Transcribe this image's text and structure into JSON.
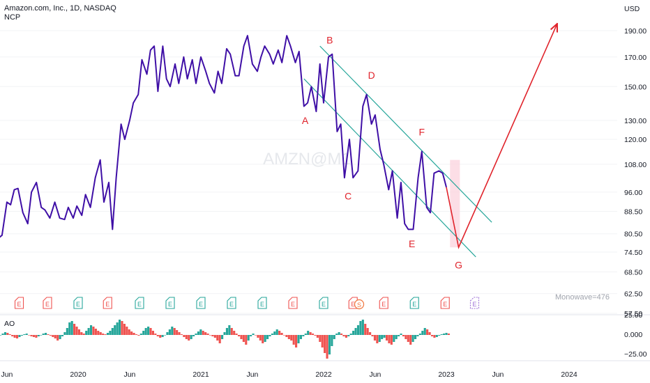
{
  "header": {
    "title": "Amazon.com, Inc., 1D, NASDAQ",
    "subtitle": "NCP"
  },
  "colors": {
    "price": "#3f0fa6",
    "channel": "#26a69a",
    "projection": "#e0232b",
    "zone": "#fbd3dd",
    "ao_up": "#26a69a",
    "ao_down": "#ef5350",
    "earnings": "#ef5350",
    "earnings_pos": "#26a69a"
  },
  "watermark": "AMZN@M1",
  "monowave_label": "Monowave=476",
  "chart_data": {
    "type": "line",
    "currency": "USD",
    "y_scale": "log",
    "price_ticks": [
      "190.00",
      "170.00",
      "150.00",
      "130.00",
      "120.00",
      "108.00",
      "96.00",
      "88.50",
      "80.50",
      "74.50",
      "68.50",
      "62.50",
      "57.50"
    ],
    "x_ticks": [
      "Jun",
      "2020",
      "Jun",
      "2021",
      "Jun",
      "2022",
      "Jun",
      "2023",
      "Jun",
      "2024"
    ],
    "series": [
      {
        "values": [
          [
            2019.35,
            79.0
          ],
          [
            2019.38,
            80.0
          ],
          [
            2019.42,
            92.0
          ],
          [
            2019.45,
            91.0
          ],
          [
            2019.48,
            97.0
          ],
          [
            2019.51,
            97.5
          ],
          [
            2019.55,
            88.0
          ],
          [
            2019.59,
            84.0
          ],
          [
            2019.62,
            96.0
          ],
          [
            2019.66,
            100.0
          ],
          [
            2019.7,
            90.0
          ],
          [
            2019.73,
            89.0
          ],
          [
            2019.77,
            86.0
          ],
          [
            2019.81,
            92.0
          ],
          [
            2019.85,
            86.0
          ],
          [
            2019.89,
            85.5
          ],
          [
            2019.92,
            90.0
          ],
          [
            2019.96,
            86.0
          ],
          [
            2019.99,
            90.5
          ],
          [
            2020.03,
            87.0
          ],
          [
            2020.06,
            95.0
          ],
          [
            2020.1,
            90.0
          ],
          [
            2020.14,
            102.0
          ],
          [
            2020.18,
            110.0
          ],
          [
            2020.21,
            92.0
          ],
          [
            2020.25,
            100.0
          ],
          [
            2020.28,
            82.0
          ],
          [
            2020.31,
            102.0
          ],
          [
            2020.35,
            128.0
          ],
          [
            2020.38,
            120.0
          ],
          [
            2020.42,
            130.0
          ],
          [
            2020.45,
            140.0
          ],
          [
            2020.49,
            145.0
          ],
          [
            2020.52,
            168.0
          ],
          [
            2020.56,
            158.0
          ],
          [
            2020.59,
            175.0
          ],
          [
            2020.62,
            178.0
          ],
          [
            2020.65,
            147.0
          ],
          [
            2020.69,
            178.0
          ],
          [
            2020.72,
            155.0
          ],
          [
            2020.75,
            150.0
          ],
          [
            2020.79,
            165.0
          ],
          [
            2020.82,
            152.0
          ],
          [
            2020.86,
            170.0
          ],
          [
            2020.89,
            155.0
          ],
          [
            2020.93,
            168.0
          ],
          [
            2020.96,
            152.0
          ],
          [
            2021.0,
            170.0
          ],
          [
            2021.04,
            160.0
          ],
          [
            2021.07,
            152.0
          ],
          [
            2021.11,
            146.0
          ],
          [
            2021.14,
            160.0
          ],
          [
            2021.17,
            152.0
          ],
          [
            2021.21,
            176.0
          ],
          [
            2021.24,
            172.0
          ],
          [
            2021.28,
            157.0
          ],
          [
            2021.31,
            157.0
          ],
          [
            2021.35,
            178.0
          ],
          [
            2021.38,
            186.0
          ],
          [
            2021.42,
            165.0
          ],
          [
            2021.46,
            160.0
          ],
          [
            2021.49,
            170.0
          ],
          [
            2021.52,
            178.0
          ],
          [
            2021.56,
            172.0
          ],
          [
            2021.59,
            165.0
          ],
          [
            2021.63,
            175.0
          ],
          [
            2021.66,
            166.0
          ],
          [
            2021.7,
            186.0
          ],
          [
            2021.73,
            178.0
          ],
          [
            2021.77,
            166.0
          ],
          [
            2021.8,
            174.0
          ],
          [
            2021.84,
            138.0
          ],
          [
            2021.87,
            140.0
          ],
          [
            2021.9,
            150.0
          ],
          [
            2021.94,
            135.0
          ],
          [
            2021.97,
            165.0
          ],
          [
            2022.0,
            140.0
          ],
          [
            2022.04,
            170.0
          ],
          [
            2022.07,
            172.0
          ],
          [
            2022.11,
            124.0
          ],
          [
            2022.14,
            128.0
          ],
          [
            2022.17,
            102.0
          ],
          [
            2022.21,
            120.0
          ],
          [
            2022.24,
            102.0
          ],
          [
            2022.28,
            105.0
          ],
          [
            2022.32,
            138.0
          ],
          [
            2022.35,
            145.0
          ],
          [
            2022.39,
            128.0
          ],
          [
            2022.42,
            133.0
          ],
          [
            2022.46,
            115.0
          ],
          [
            2022.49,
            108.0
          ],
          [
            2022.53,
            97.0
          ],
          [
            2022.56,
            105.0
          ],
          [
            2022.6,
            86.0
          ],
          [
            2022.63,
            100.0
          ],
          [
            2022.66,
            84.0
          ],
          [
            2022.69,
            82.0
          ],
          [
            2022.73,
            82.0
          ],
          [
            2022.77,
            102.0
          ],
          [
            2022.8,
            114.0
          ],
          [
            2022.84,
            90.0
          ],
          [
            2022.87,
            88.0
          ],
          [
            2022.9,
            104.0
          ],
          [
            2022.94,
            105.0
          ],
          [
            2022.97,
            104.0
          ],
          [
            2023.0,
            98.0
          ]
        ]
      }
    ],
    "channel_lines": [
      {
        "name": "upper",
        "from": [
          2021.97,
          178.0
        ],
        "to": [
          2023.37,
          84.5
        ]
      },
      {
        "name": "lower",
        "from": [
          2021.84,
          155.0
        ],
        "to": [
          2023.24,
          73.0
        ]
      }
    ],
    "projection": [
      [
        2023.0,
        98.0
      ],
      [
        2023.1,
        76.0
      ],
      [
        2023.9,
        195.0
      ]
    ],
    "zone": {
      "x0": 2023.03,
      "x1": 2023.11,
      "y0": 76.0,
      "y1": 110.0
    },
    "wave_labels": [
      {
        "label": "A",
        "x": 2021.85,
        "y": 128.0
      },
      {
        "label": "B",
        "x": 2022.05,
        "y": 180.0
      },
      {
        "label": "C",
        "x": 2022.2,
        "y": 93.0
      },
      {
        "label": "D",
        "x": 2022.39,
        "y": 155.0
      },
      {
        "label": "E",
        "x": 2022.72,
        "y": 76.0
      },
      {
        "label": "F",
        "x": 2022.8,
        "y": 122.0
      },
      {
        "label": "G",
        "x": 2023.1,
        "y": 69.5
      }
    ],
    "earnings": [
      {
        "x": 2019.52,
        "sign": "down"
      },
      {
        "x": 2019.75,
        "sign": "down"
      },
      {
        "x": 2020.0,
        "sign": "up"
      },
      {
        "x": 2020.24,
        "sign": "down"
      },
      {
        "x": 2020.5,
        "sign": "up"
      },
      {
        "x": 2020.75,
        "sign": "up"
      },
      {
        "x": 2021.0,
        "sign": "up"
      },
      {
        "x": 2021.25,
        "sign": "up"
      },
      {
        "x": 2021.5,
        "sign": "up"
      },
      {
        "x": 2021.75,
        "sign": "down"
      },
      {
        "x": 2022.0,
        "sign": "up"
      },
      {
        "x": 2022.24,
        "sign": "down"
      },
      {
        "x": 2022.29,
        "sign": "split"
      },
      {
        "x": 2022.49,
        "sign": "down"
      },
      {
        "x": 2022.74,
        "sign": "up"
      },
      {
        "x": 2022.99,
        "sign": "down"
      },
      {
        "x": 2023.23,
        "sign": "pending"
      }
    ],
    "ao": {
      "label": "AO",
      "ticks": [
        "25.00",
        "0.000",
        "−25.00"
      ],
      "values": [
        -3,
        -4,
        -2,
        0,
        2,
        4,
        3,
        1,
        -2,
        -4,
        -5,
        -3,
        -1,
        1,
        2,
        0,
        -2,
        -3,
        -4,
        -2,
        0,
        2,
        3,
        1,
        -1,
        -3,
        -5,
        -8,
        -6,
        -2,
        4,
        10,
        18,
        20,
        16,
        12,
        8,
        4,
        2,
        6,
        10,
        14,
        12,
        9,
        6,
        4,
        2,
        1,
        3,
        6,
        10,
        14,
        18,
        22,
        20,
        16,
        12,
        8,
        5,
        3,
        1,
        -1,
        2,
        6,
        10,
        12,
        10,
        6,
        2,
        -2,
        -4,
        -3,
        0,
        4,
        8,
        12,
        10,
        7,
        4,
        1,
        -3,
        -6,
        -8,
        -6,
        -2,
        2,
        5,
        8,
        6,
        4,
        2,
        0,
        -2,
        -4,
        -8,
        -12,
        -6,
        4,
        10,
        14,
        10,
        6,
        2,
        -2,
        -6,
        -10,
        -14,
        -8,
        -2,
        2,
        0,
        -4,
        -8,
        -12,
        -10,
        -6,
        -2,
        2,
        5,
        8,
        6,
        3,
        0,
        -3,
        -6,
        -8,
        -14,
        -18,
        -12,
        -6,
        -2,
        2,
        6,
        4,
        2,
        -1,
        -4,
        -10,
        -18,
        -26,
        -34,
        -28,
        -16,
        -6,
        2,
        4,
        2,
        -2,
        -4,
        -2,
        2,
        6,
        10,
        14,
        20,
        22,
        16,
        10,
        4,
        -2,
        -8,
        -12,
        -10,
        -6,
        -4,
        -8,
        -12,
        -14,
        -10,
        -6,
        -2,
        2,
        -2,
        -6,
        -10,
        -14,
        -10,
        -6,
        -2,
        2,
        6,
        10,
        8,
        4,
        -2,
        -4,
        -3,
        -1,
        1,
        2,
        3,
        2
      ]
    }
  }
}
